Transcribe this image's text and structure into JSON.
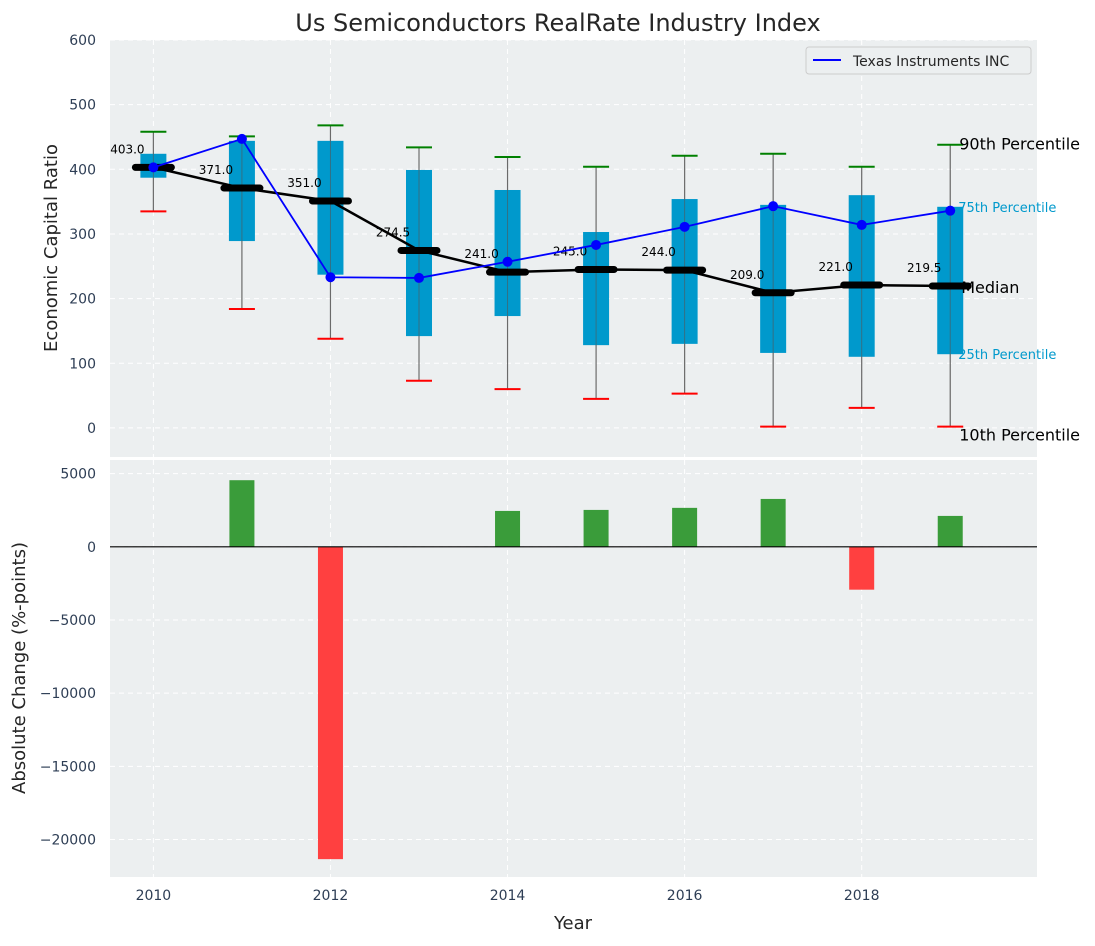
{
  "chart_data": [
    {
      "type": "box",
      "title": "Us Semiconductors RealRate Industry Index",
      "ylabel": "Economic Capital Ratio",
      "xlabel": "",
      "ylim": [
        -45,
        600
      ],
      "xlim": [
        2009.51,
        2019.98
      ],
      "yticks": [
        0,
        100,
        200,
        300,
        400,
        500,
        600
      ],
      "grid": true,
      "legend": {
        "position": "top-right",
        "entries": [
          "Texas Instruments INC"
        ]
      },
      "years": [
        2010,
        2011,
        2012,
        2013,
        2014,
        2015,
        2016,
        2017,
        2018,
        2019
      ],
      "p90": [
        458,
        451,
        468,
        434,
        419,
        404,
        421,
        424,
        404,
        438
      ],
      "p75": [
        424,
        444,
        444,
        399,
        368,
        303,
        354,
        345,
        360,
        342
      ],
      "median": [
        403.0,
        371.0,
        351.0,
        274.5,
        241.0,
        245.0,
        244.0,
        209.0,
        221.0,
        219.5
      ],
      "median_labels": [
        "403.0",
        "371.0",
        "351.0",
        "274.5",
        "241.0",
        "245.0",
        "244.0",
        "209.0",
        "221.0",
        "219.5"
      ],
      "p25": [
        387,
        289,
        237,
        142,
        173,
        128,
        130,
        116,
        110,
        114
      ],
      "p10": [
        335,
        184,
        138,
        73,
        60,
        45,
        53,
        2,
        31,
        2
      ],
      "series": [
        {
          "name": "Texas Instruments INC",
          "values": [
            403,
            447,
            233,
            232,
            257,
            283,
            311,
            343,
            314,
            336
          ]
        }
      ],
      "annotations": {
        "p90": "90th Percentile",
        "p75": "75th Percentile",
        "median": "Median",
        "p25": "25th Percentile",
        "p10": "10th Percentile"
      },
      "colors": {
        "box": "#0099cc",
        "median": "#000000",
        "series": "#0000ff",
        "whisker_top": "#008000",
        "whisker_bottom": "#ff0000",
        "background": "#eceff0"
      }
    },
    {
      "type": "bar",
      "ylabel": "Absolute Change (%-points)",
      "xlabel": "Year",
      "ylim": [
        -22560,
        5930
      ],
      "yticks": [
        5000,
        0,
        -5000,
        -10000,
        -15000,
        -20000
      ],
      "ytick_labels": [
        "5000",
        "0",
        "−5000",
        "−10000",
        "−15000",
        "−20000"
      ],
      "xticks": [
        2010,
        2012,
        2014,
        2016,
        2018
      ],
      "xtick_labels": [
        "2010",
        "2012",
        "2014",
        "2016",
        "2018"
      ],
      "categories": [
        2010,
        2011,
        2012,
        2013,
        2014,
        2015,
        2016,
        2017,
        2018,
        2019
      ],
      "values": [
        0,
        4550,
        -21340,
        0,
        2450,
        2520,
        2660,
        3270,
        -2930,
        2110
      ],
      "colors": {
        "positive": "#3a9c3a",
        "negative": "#ff4040"
      }
    }
  ]
}
